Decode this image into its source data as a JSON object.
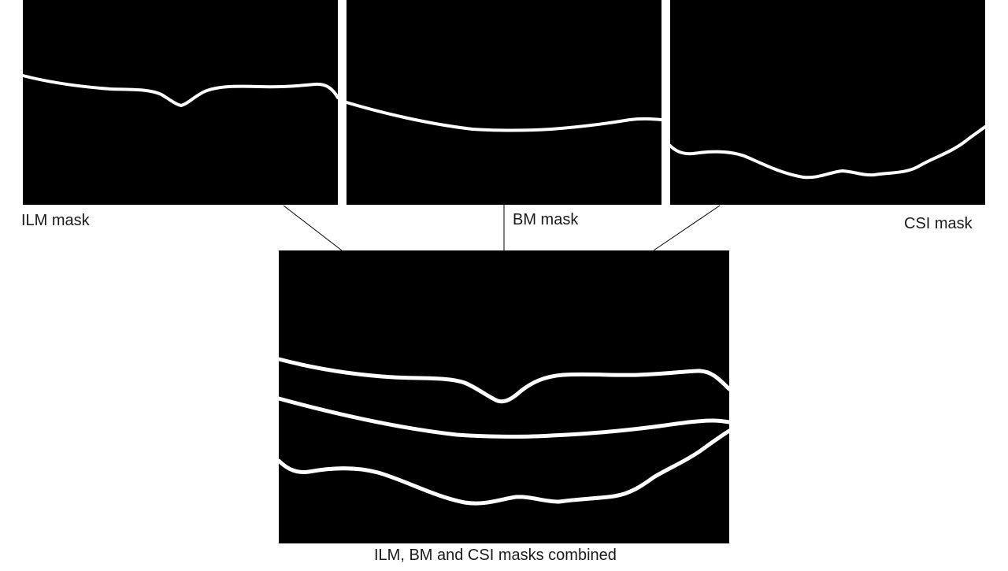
{
  "panels": {
    "ilm": {
      "caption": "ILM mask"
    },
    "bm": {
      "caption": "BM mask"
    },
    "csi": {
      "caption": "CSI mask"
    },
    "combined": {
      "caption": "ILM, BM and CSI masks combined"
    }
  },
  "colors": {
    "mask_background": "#000000",
    "mask_line": "#ffffff",
    "connector": "#000000",
    "page_background": "#ffffff"
  }
}
